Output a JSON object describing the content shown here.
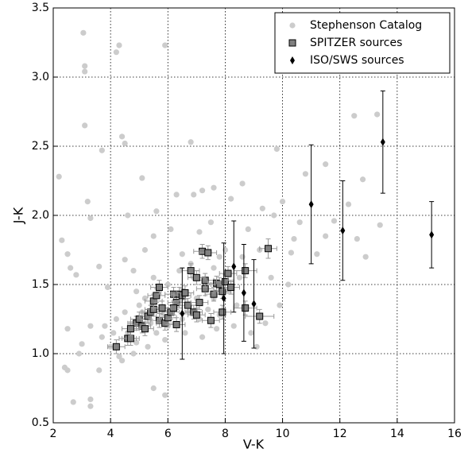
{
  "chart_data": {
    "type": "scatter",
    "x_label": "V-K",
    "y_label": "J-K",
    "xlim": [
      2,
      16
    ],
    "ylim": [
      0.5,
      3.5
    ],
    "xticks": [
      2,
      4,
      6,
      8,
      10,
      12,
      14,
      16
    ],
    "yticks": [
      0.5,
      {
        "value": 1,
        "label": "1.0"
      },
      1.5,
      {
        "value": 2,
        "label": "2.0"
      },
      2.5,
      {
        "value": 3,
        "label": "3.0"
      },
      3.5
    ],
    "grid": true,
    "legend": "upper right",
    "series": [
      {
        "name": "Stephenson Catalog",
        "color": "#cccccc",
        "marker": "circle",
        "x": [
          3.05,
          3.1,
          3.1,
          4.3,
          4.2,
          5.9,
          3.1,
          4.4,
          4.5,
          3.7,
          2.2,
          6.8,
          5.1,
          9.8,
          10.8,
          11.5,
          12.5,
          13.3,
          12.8,
          12.3,
          11.8,
          11.5,
          11.2,
          12.6,
          10.4,
          10.6,
          10.0,
          9.7,
          9.3,
          8.6,
          8.2,
          7.6,
          7.2,
          6.9,
          6.3,
          5.6,
          4.6,
          3.2,
          3.3,
          2.3,
          2.5,
          2.6,
          2.8,
          3.6,
          3.9,
          4.5,
          4.8,
          5.2,
          5.5,
          6.1,
          6.5,
          7.1,
          7.5,
          8.0,
          8.8,
          9.2,
          9.6,
          10.2,
          9.9,
          9.4,
          8.9,
          9.1,
          8.3,
          7.7,
          7.2,
          6.6,
          5.9,
          5.3,
          4.8,
          4.3,
          4.0,
          3.7,
          3.3,
          2.9,
          2.4,
          2.5,
          2.7,
          3.3,
          3.3,
          5.5,
          5.9,
          4.4,
          3.0,
          3.6,
          2.5,
          4.9,
          5.5,
          6.0,
          6.4,
          6.9,
          7.3,
          7.6,
          5.0,
          4.5,
          4.2,
          4.7,
          5.4,
          5.8,
          6.3,
          6.7,
          7.0,
          7.4,
          7.8,
          8.1,
          8.5,
          6.2,
          5.7,
          5.1,
          4.6,
          4.1,
          3.8,
          6.8,
          7.8,
          8.6,
          6.0,
          6.5,
          7.1,
          7.6,
          8.4,
          5.2,
          4.9,
          5.6,
          10.3,
          12.9,
          13.4
        ],
        "y": [
          3.32,
          3.08,
          3.04,
          3.23,
          3.18,
          3.23,
          2.65,
          2.57,
          2.52,
          2.47,
          2.28,
          2.53,
          2.27,
          2.48,
          2.3,
          2.37,
          2.72,
          2.73,
          2.26,
          2.08,
          1.96,
          1.85,
          1.72,
          1.83,
          1.83,
          1.95,
          2.1,
          2.0,
          2.05,
          2.23,
          2.12,
          2.2,
          2.18,
          2.15,
          2.15,
          2.03,
          2.0,
          2.1,
          1.98,
          1.82,
          1.72,
          1.62,
          1.57,
          1.63,
          1.48,
          1.68,
          1.6,
          1.75,
          1.85,
          1.9,
          1.72,
          1.88,
          1.95,
          1.75,
          1.9,
          1.75,
          1.55,
          1.5,
          1.35,
          1.22,
          1.15,
          1.05,
          1.2,
          1.18,
          1.12,
          1.15,
          1.1,
          1.05,
          1.0,
          0.98,
          1.05,
          1.12,
          1.2,
          1.0,
          0.9,
          1.18,
          0.65,
          0.67,
          0.62,
          0.75,
          0.7,
          0.95,
          1.07,
          0.88,
          0.88,
          1.45,
          1.55,
          1.5,
          1.6,
          1.55,
          1.48,
          1.62,
          1.35,
          1.3,
          1.25,
          1.2,
          1.22,
          1.3,
          1.35,
          1.3,
          1.4,
          1.32,
          1.28,
          1.45,
          1.55,
          1.42,
          1.45,
          1.3,
          1.15,
          1.15,
          1.2,
          1.65,
          1.7,
          1.7,
          1.2,
          1.25,
          1.25,
          1.4,
          1.35,
          1.4,
          1.08,
          1.15,
          1.73,
          1.7,
          1.93
        ]
      },
      {
        "name": "SPITZER sources",
        "color": "#808080",
        "marker": "square",
        "x": [
          4.2,
          4.6,
          4.7,
          4.9,
          5.0,
          5.1,
          5.2,
          5.3,
          5.4,
          5.5,
          5.5,
          5.6,
          5.7,
          5.7,
          5.9,
          6.0,
          6.1,
          6.2,
          6.3,
          6.3,
          6.4,
          6.5,
          6.6,
          6.7,
          6.8,
          6.9,
          7.0,
          7.1,
          7.2,
          7.3,
          7.3,
          7.4,
          7.5,
          7.6,
          7.7,
          7.8,
          7.9,
          7.9,
          8.0,
          8.1,
          8.2,
          8.7,
          8.7,
          9.2,
          9.5,
          6.2,
          7.0,
          5.8,
          4.7
        ],
        "y": [
          1.05,
          1.11,
          1.11,
          1.22,
          1.25,
          1.2,
          1.18,
          1.27,
          1.3,
          1.32,
          1.38,
          1.42,
          1.48,
          1.24,
          1.22,
          1.26,
          1.3,
          1.43,
          1.37,
          1.21,
          1.43,
          1.42,
          1.44,
          1.35,
          1.6,
          1.3,
          1.28,
          1.37,
          1.74,
          1.47,
          1.53,
          1.73,
          1.24,
          1.43,
          1.51,
          1.5,
          1.3,
          1.45,
          1.52,
          1.58,
          1.48,
          1.33,
          1.6,
          1.27,
          1.76,
          1.33,
          1.55,
          1.33,
          1.18
        ],
        "xerr": [
          0.3,
          0.3,
          0.3,
          0.3,
          0.3,
          0.3,
          0.3,
          0.3,
          0.3,
          0.3,
          0.3,
          0.3,
          0.3,
          0.3,
          0.3,
          0.3,
          0.3,
          0.3,
          0.3,
          0.3,
          0.3,
          0.3,
          0.3,
          0.3,
          0.3,
          0.3,
          0.3,
          0.3,
          0.3,
          0.3,
          0.3,
          0.3,
          0.3,
          0.3,
          0.3,
          0.3,
          0.3,
          0.3,
          0.3,
          0.3,
          0.3,
          0.4,
          0.4,
          0.5,
          0.3,
          0.3,
          0.3,
          0.3,
          0.3
        ],
        "yerr": [
          0.05,
          0.05,
          0.05,
          0.05,
          0.05,
          0.05,
          0.05,
          0.05,
          0.05,
          0.05,
          0.05,
          0.05,
          0.05,
          0.05,
          0.05,
          0.05,
          0.05,
          0.05,
          0.05,
          0.05,
          0.05,
          0.05,
          0.05,
          0.05,
          0.05,
          0.05,
          0.05,
          0.05,
          0.05,
          0.05,
          0.05,
          0.05,
          0.05,
          0.05,
          0.05,
          0.05,
          0.05,
          0.05,
          0.05,
          0.05,
          0.05,
          0.05,
          0.05,
          0.05,
          0.07,
          0.05,
          0.05,
          0.05,
          0.05
        ]
      },
      {
        "name": "ISO/SWS sources",
        "color": "#000000",
        "marker": "diamond",
        "x": [
          6.5,
          7.95,
          8.3,
          8.65,
          9.0,
          11.0,
          12.1,
          13.5,
          15.2
        ],
        "y": [
          1.29,
          1.4,
          1.63,
          1.44,
          1.36,
          2.08,
          1.89,
          2.53,
          1.86
        ],
        "yerr": [
          0.33,
          0.4,
          0.33,
          0.35,
          0.32,
          0.43,
          0.36,
          0.37,
          0.24
        ]
      }
    ]
  }
}
